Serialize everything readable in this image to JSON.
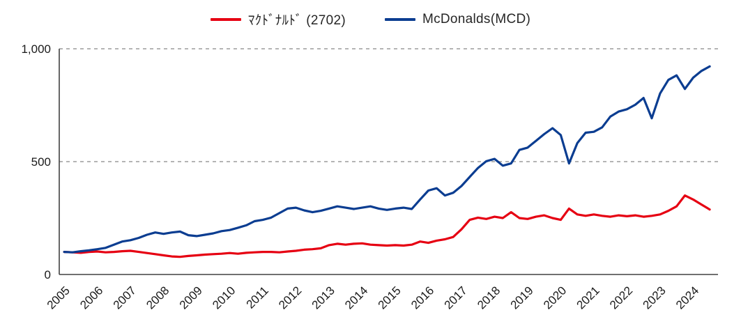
{
  "legend": {
    "items": [
      {
        "label": "ﾏｸﾄﾞﾅﾙﾄﾞ (2702)",
        "color": "#e60012"
      },
      {
        "label": "McDonalds(MCD)",
        "color": "#0b3d91"
      }
    ],
    "position": "top-center"
  },
  "axes": {
    "ytick_labels": [
      "0",
      "500",
      "1,000"
    ],
    "xtick_labels": [
      "2005",
      "2006",
      "2007",
      "2008",
      "2009",
      "2010",
      "2011",
      "2012",
      "2013",
      "2014",
      "2015",
      "2016",
      "2017",
      "2018",
      "2019",
      "2020",
      "2021",
      "2022",
      "2023",
      "2024"
    ]
  },
  "colors": {
    "series_red": "#e60012",
    "series_blue": "#0b3d91",
    "gridline": "#888888",
    "axis": "#404040",
    "tick_text": "#1a1a1a"
  },
  "chart_data": {
    "type": "line",
    "title": "",
    "xlabel": "",
    "ylabel": "",
    "grid": "horizontal dashed at 500 and 1000, solid baseline at 0",
    "legend_position": "top-center",
    "xlim": [
      2004.85,
      2024.75
    ],
    "ylim": [
      0,
      1000
    ],
    "yticks": [
      0,
      500,
      1000
    ],
    "ytick_labels": [
      "0",
      "500",
      "1,000"
    ],
    "xticks": [
      2005,
      2006,
      2007,
      2008,
      2009,
      2010,
      2011,
      2012,
      2013,
      2014,
      2015,
      2016,
      2017,
      2018,
      2019,
      2020,
      2021,
      2022,
      2023,
      2024
    ],
    "x": [
      2005,
      2005.25,
      2005.5,
      2005.75,
      2006,
      2006.25,
      2006.5,
      2006.75,
      2007,
      2007.25,
      2007.5,
      2007.75,
      2008,
      2008.25,
      2008.5,
      2008.75,
      2009,
      2009.25,
      2009.5,
      2009.75,
      2010,
      2010.25,
      2010.5,
      2010.75,
      2011,
      2011.25,
      2011.5,
      2011.75,
      2012,
      2012.25,
      2012.5,
      2012.75,
      2013,
      2013.25,
      2013.5,
      2013.75,
      2014,
      2014.25,
      2014.5,
      2014.75,
      2015,
      2015.25,
      2015.5,
      2015.75,
      2016,
      2016.25,
      2016.5,
      2016.75,
      2017,
      2017.25,
      2017.5,
      2017.75,
      2018,
      2018.25,
      2018.5,
      2018.75,
      2019,
      2019.25,
      2019.5,
      2019.75,
      2020,
      2020.25,
      2020.5,
      2020.75,
      2021,
      2021.25,
      2021.5,
      2021.75,
      2022,
      2022.25,
      2022.5,
      2022.75,
      2023,
      2023.25,
      2023.5,
      2023.75,
      2024,
      2024.25,
      2024.5
    ],
    "series": [
      {
        "name": "ﾏｸﾄﾞﾅﾙﾄﾞ (2702)",
        "color": "#e60012",
        "values": [
          100,
          98,
          96,
          100,
          102,
          98,
          100,
          103,
          105,
          100,
          95,
          90,
          85,
          80,
          78,
          82,
          85,
          88,
          90,
          92,
          95,
          92,
          96,
          98,
          100,
          100,
          98,
          102,
          105,
          110,
          112,
          116,
          130,
          136,
          132,
          136,
          138,
          132,
          130,
          128,
          130,
          128,
          132,
          146,
          140,
          150,
          156,
          166,
          200,
          242,
          252,
          246,
          256,
          250,
          276,
          250,
          246,
          256,
          262,
          250,
          242,
          292,
          266,
          260,
          266,
          260,
          256,
          262,
          258,
          262,
          256,
          260,
          266,
          282,
          302,
          350,
          332,
          310,
          288
        ]
      },
      {
        "name": "McDonalds(MCD)",
        "color": "#0b3d91",
        "values": [
          100,
          98,
          103,
          107,
          112,
          118,
          132,
          146,
          152,
          162,
          176,
          186,
          180,
          186,
          190,
          174,
          170,
          176,
          182,
          192,
          197,
          207,
          218,
          236,
          242,
          252,
          272,
          292,
          296,
          284,
          276,
          282,
          292,
          302,
          296,
          290,
          296,
          302,
          292,
          286,
          292,
          296,
          290,
          332,
          372,
          382,
          350,
          362,
          392,
          432,
          472,
          502,
          512,
          482,
          492,
          552,
          562,
          592,
          622,
          648,
          618,
          492,
          582,
          628,
          632,
          652,
          700,
          722,
          732,
          752,
          782,
          692,
          802,
          862,
          882,
          822,
          872,
          902,
          922
        ]
      }
    ]
  }
}
